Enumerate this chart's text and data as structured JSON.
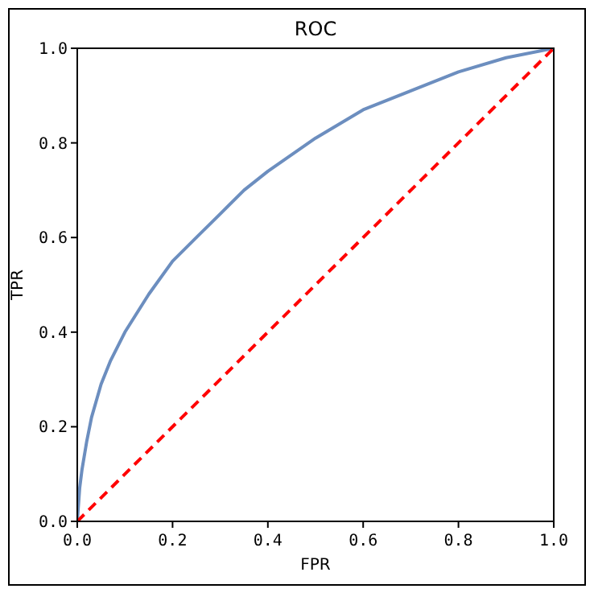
{
  "chart_data": {
    "type": "line",
    "title": "ROC",
    "xlabel": "FPR",
    "ylabel": "TPR",
    "xlim": [
      0,
      1
    ],
    "ylim": [
      0,
      1
    ],
    "xticks": [
      {
        "value": 0,
        "label": "0.0"
      },
      {
        "value": 0.2,
        "label": "0.2"
      },
      {
        "value": 0.4,
        "label": "0.4"
      },
      {
        "value": 0.6,
        "label": "0.6"
      },
      {
        "value": 0.8,
        "label": "0.8"
      },
      {
        "value": 1,
        "label": "1.0"
      }
    ],
    "yticks": [
      {
        "value": 0,
        "label": "0.0"
      },
      {
        "value": 0.2,
        "label": "0.2"
      },
      {
        "value": 0.4,
        "label": "0.4"
      },
      {
        "value": 0.6,
        "label": "0.6"
      },
      {
        "value": 0.8,
        "label": "0.8"
      },
      {
        "value": 1,
        "label": "1.0"
      }
    ],
    "series": [
      {
        "color": "#6c8ebf",
        "line_style": "solid",
        "x": [
          0,
          0.005,
          0.01,
          0.02,
          0.03,
          0.05,
          0.07,
          0.1,
          0.15,
          0.2,
          0.25,
          0.3,
          0.35,
          0.4,
          0.5,
          0.6,
          0.7,
          0.8,
          0.9,
          1
        ],
        "values": [
          0,
          0.07,
          0.11,
          0.17,
          0.22,
          0.29,
          0.34,
          0.4,
          0.48,
          0.55,
          0.6,
          0.65,
          0.7,
          0.74,
          0.81,
          0.87,
          0.91,
          0.95,
          0.98,
          1
        ]
      },
      {
        "color": "#ff0000",
        "line_style": "dashed",
        "x": [
          0,
          1
        ],
        "values": [
          0,
          1
        ]
      }
    ]
  }
}
